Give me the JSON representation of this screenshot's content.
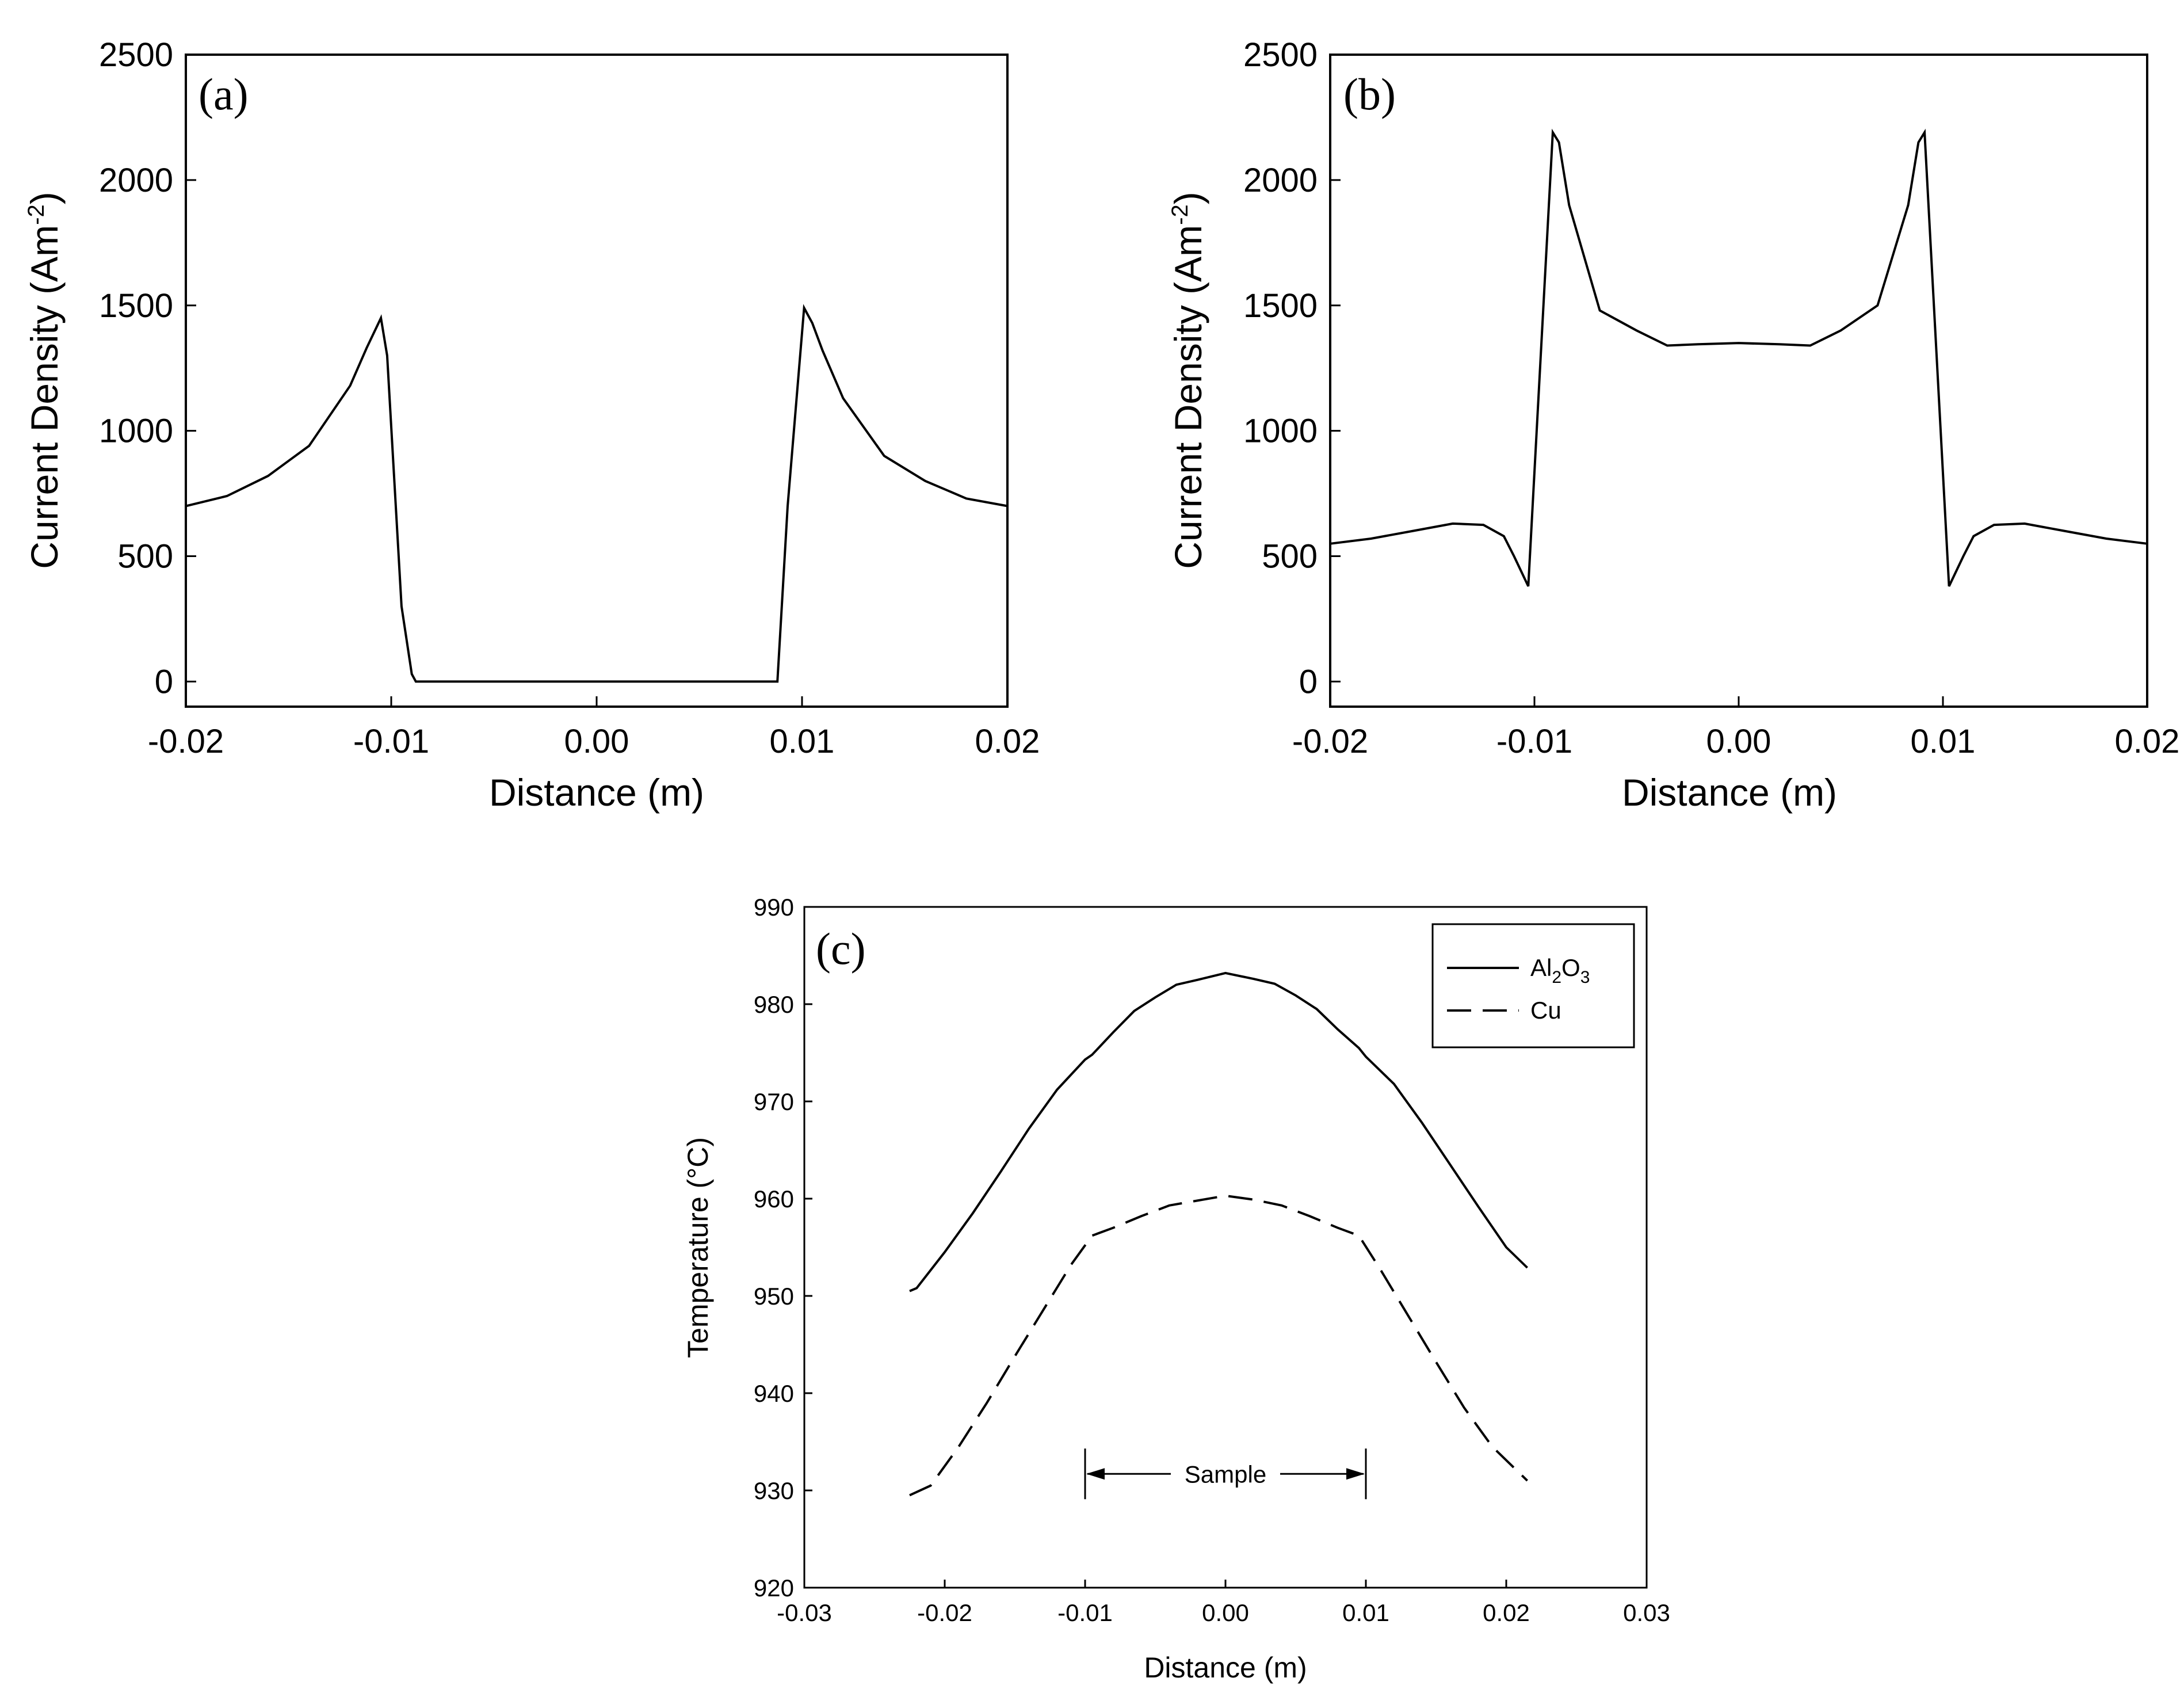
{
  "chart_data": [
    {
      "type": "line",
      "panel_label": "(a)",
      "xlabel": "Distance (m)",
      "ylabel_main": "Current Density (Am",
      "ylabel_sup": "-2",
      "ylabel_end": ")",
      "xlim": [
        -0.02,
        0.02
      ],
      "ylim": [
        -100,
        2500
      ],
      "xticks": [
        -0.02,
        -0.01,
        0.0,
        0.01,
        0.02
      ],
      "xtick_labels": [
        "-0.02",
        "-0.01",
        "0.00",
        "0.01",
        "0.02"
      ],
      "yticks": [
        0,
        500,
        1000,
        1500,
        2000,
        2500
      ],
      "ytick_labels": [
        "0",
        "500",
        "1000",
        "1500",
        "2000",
        "2500"
      ],
      "series": [
        {
          "name": "current density",
          "x": [
            -0.02,
            -0.018,
            -0.016,
            -0.014,
            -0.012,
            -0.0112,
            -0.0105,
            -0.0102,
            -0.0095,
            -0.009,
            -0.0088,
            -0.005,
            0.0,
            0.005,
            0.0088,
            0.0093,
            0.0101,
            0.0105,
            0.011,
            0.012,
            0.014,
            0.016,
            0.018,
            0.02
          ],
          "y": [
            700,
            740,
            820,
            940,
            1180,
            1330,
            1450,
            1300,
            300,
            30,
            0,
            0,
            0,
            0,
            0,
            700,
            1490,
            1430,
            1320,
            1130,
            900,
            800,
            730,
            700
          ]
        }
      ]
    },
    {
      "type": "line",
      "panel_label": "(b)",
      "xlabel": "Distance (m)",
      "ylabel_main": "Current Density (Am",
      "ylabel_sup": "-2",
      "ylabel_end": ")",
      "xlim": [
        -0.02,
        0.02
      ],
      "ylim": [
        -100,
        2500
      ],
      "xticks": [
        -0.02,
        -0.01,
        0.0,
        0.01,
        0.02
      ],
      "xtick_labels": [
        "-0.02",
        "-0.01",
        "0.00",
        "0.01",
        "0.02"
      ],
      "yticks": [
        0,
        500,
        1000,
        1500,
        2000,
        2500
      ],
      "ytick_labels": [
        "0",
        "500",
        "1000",
        "1500",
        "2000",
        "2500"
      ],
      "series": [
        {
          "name": "current density",
          "x": [
            -0.02,
            -0.018,
            -0.016,
            -0.014,
            -0.0125,
            -0.0115,
            -0.011,
            -0.0103,
            -0.0091,
            -0.0088,
            -0.0083,
            -0.0068,
            -0.005,
            -0.0035,
            -0.002,
            0.0,
            0.002,
            0.0035,
            0.005,
            0.0068,
            0.0083,
            0.0088,
            0.0091,
            0.0103,
            0.011,
            0.0115,
            0.0125,
            0.014,
            0.016,
            0.018,
            0.02
          ],
          "y": [
            550,
            570,
            600,
            630,
            625,
            580,
            500,
            380,
            2190,
            2150,
            1900,
            1480,
            1400,
            1340,
            1345,
            1350,
            1345,
            1340,
            1400,
            1500,
            1900,
            2150,
            2190,
            380,
            500,
            580,
            625,
            630,
            600,
            570,
            550
          ]
        }
      ]
    },
    {
      "type": "line",
      "panel_label": "(c)",
      "xlabel": "Distance (m)",
      "ylabel": "Temperature (°C)",
      "xlim": [
        -0.03,
        0.03
      ],
      "ylim": [
        920,
        990
      ],
      "xticks": [
        -0.03,
        -0.02,
        -0.01,
        0.0,
        0.01,
        0.02,
        0.03
      ],
      "xtick_labels": [
        "-0.03",
        "-0.02",
        "-0.01",
        "0.00",
        "0.01",
        "0.02",
        "0.03"
      ],
      "yticks": [
        920,
        930,
        940,
        950,
        960,
        970,
        980,
        990
      ],
      "ytick_labels": [
        "920",
        "930",
        "940",
        "950",
        "960",
        "970",
        "980",
        "990"
      ],
      "legend_position": "top-right",
      "legend": [
        {
          "label_main": "Al",
          "label_sub1": "2",
          "label_mid": "O",
          "label_sub2": "3",
          "style": "solid"
        },
        {
          "label_main": "Cu",
          "style": "dashed"
        }
      ],
      "annotation": {
        "text": "Sample",
        "x_from": -0.01,
        "x_to": 0.01,
        "y": 931.7
      },
      "series": [
        {
          "name": "Al2O3",
          "style": "solid",
          "x": [
            -0.0225,
            -0.022,
            -0.02,
            -0.018,
            -0.016,
            -0.014,
            -0.012,
            -0.01,
            -0.0095,
            -0.008,
            -0.0065,
            -0.005,
            -0.0035,
            -0.002,
            0.0,
            0.002,
            0.0035,
            0.005,
            0.0065,
            0.008,
            0.0095,
            0.01,
            0.012,
            0.014,
            0.016,
            0.018,
            0.02,
            0.0215
          ],
          "y": [
            950.5,
            950.8,
            954.5,
            958.5,
            962.8,
            967.2,
            971.2,
            974.3,
            974.8,
            977.1,
            979.3,
            980.7,
            982.0,
            982.5,
            983.2,
            982.6,
            982.1,
            980.9,
            979.5,
            977.4,
            975.5,
            974.6,
            971.8,
            967.8,
            963.5,
            959.2,
            955.0,
            952.9
          ]
        },
        {
          "name": "Cu",
          "style": "dashed",
          "x": [
            -0.0225,
            -0.021,
            -0.019,
            -0.017,
            -0.015,
            -0.013,
            -0.011,
            -0.0095,
            -0.008,
            -0.006,
            -0.004,
            -0.002,
            0.0,
            0.002,
            0.004,
            0.006,
            0.008,
            0.0095,
            0.011,
            0.013,
            0.015,
            0.017,
            0.019,
            0.0215
          ],
          "y": [
            929.5,
            930.5,
            934.5,
            939.0,
            943.8,
            948.5,
            953.2,
            956.2,
            957.0,
            958.2,
            959.3,
            959.8,
            960.3,
            959.9,
            959.3,
            958.2,
            957.0,
            956.2,
            952.8,
            948.0,
            943.2,
            938.5,
            934.5,
            931.0
          ]
        }
      ]
    }
  ]
}
